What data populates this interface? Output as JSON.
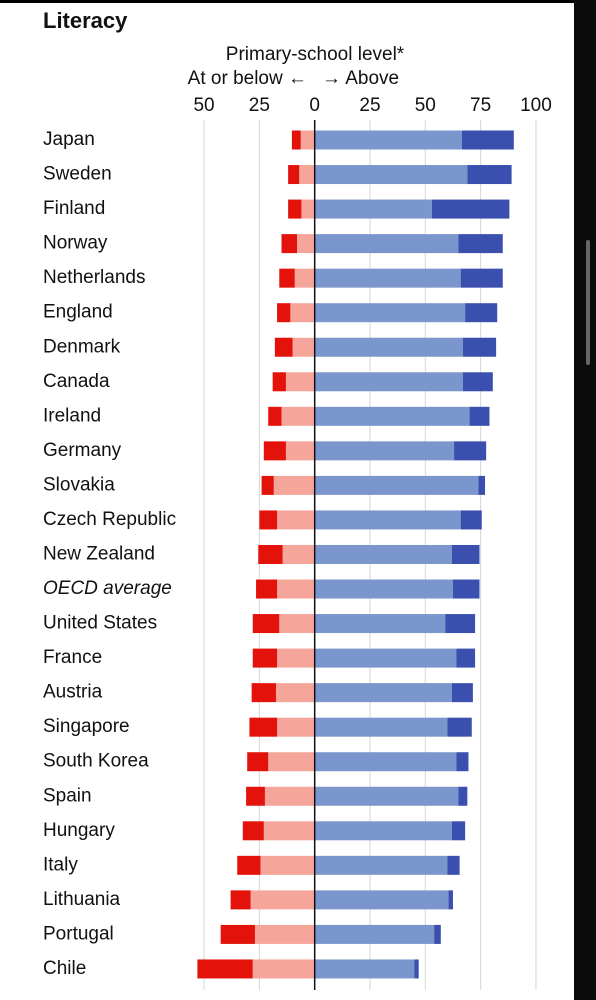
{
  "chart_data": {
    "type": "diverging-stacked-bar",
    "title": "Literacy",
    "subtitle": "Primary-school level*",
    "legend_left": "At or below ←",
    "legend_right": "→ Above",
    "categories": [
      "Japan",
      "Sweden",
      "Finland",
      "Norway",
      "Netherlands",
      "England",
      "Denmark",
      "Canada",
      "Ireland",
      "Germany",
      "Slovakia",
      "Czech Republic",
      "New Zealand",
      "OECD average",
      "United States",
      "France",
      "Austria",
      "Singapore",
      "South Korea",
      "Spain",
      "Hungary",
      "Italy",
      "Lithuania",
      "Portugal",
      "Chile"
    ],
    "italic_categories": [
      "OECD average"
    ],
    "series": [
      {
        "color": "#f6a59b",
        "values": [
          -6.3,
          -7,
          -6,
          -8,
          -9,
          -11,
          -10,
          -13,
          -15,
          -13,
          -18.5,
          -17,
          -14.5,
          -17,
          -16,
          -17,
          -17.5,
          -17,
          -21,
          -22.5,
          -23,
          -24.5,
          -29,
          -27,
          -28
        ]
      },
      {
        "color": "#e3120b",
        "values": [
          -4,
          -5,
          -6,
          -7,
          -7,
          -6,
          -8,
          -6,
          -6,
          -10,
          -5.5,
          -8,
          -11,
          -9.5,
          -12,
          -11,
          -11,
          -12.5,
          -9.5,
          -8.5,
          -9.5,
          -10.5,
          -9,
          -15.5,
          -25
        ]
      },
      {
        "color": "#7b96cc",
        "values": [
          66.5,
          69,
          53,
          65,
          66,
          68,
          67,
          67,
          70,
          63,
          74,
          66,
          62,
          62.5,
          59,
          64,
          62,
          60,
          64,
          65,
          62,
          60,
          60.5,
          54,
          45
        ]
      },
      {
        "color": "#3a4fae",
        "values": [
          23.5,
          20,
          35,
          20,
          19,
          14.5,
          15,
          13.5,
          9,
          14.5,
          3,
          9.5,
          12.5,
          12,
          13.5,
          8.5,
          9.5,
          11,
          5.5,
          4,
          6,
          5.5,
          2,
          3,
          2
        ]
      }
    ],
    "xlim": [
      -55,
      105
    ],
    "xticks": [
      {
        "value": -50,
        "label": "50"
      },
      {
        "value": -25,
        "label": "25"
      },
      0,
      25,
      50,
      75,
      100
    ],
    "grid": true,
    "left_color": "#c8102e",
    "right_color": "#1f2e7a"
  }
}
